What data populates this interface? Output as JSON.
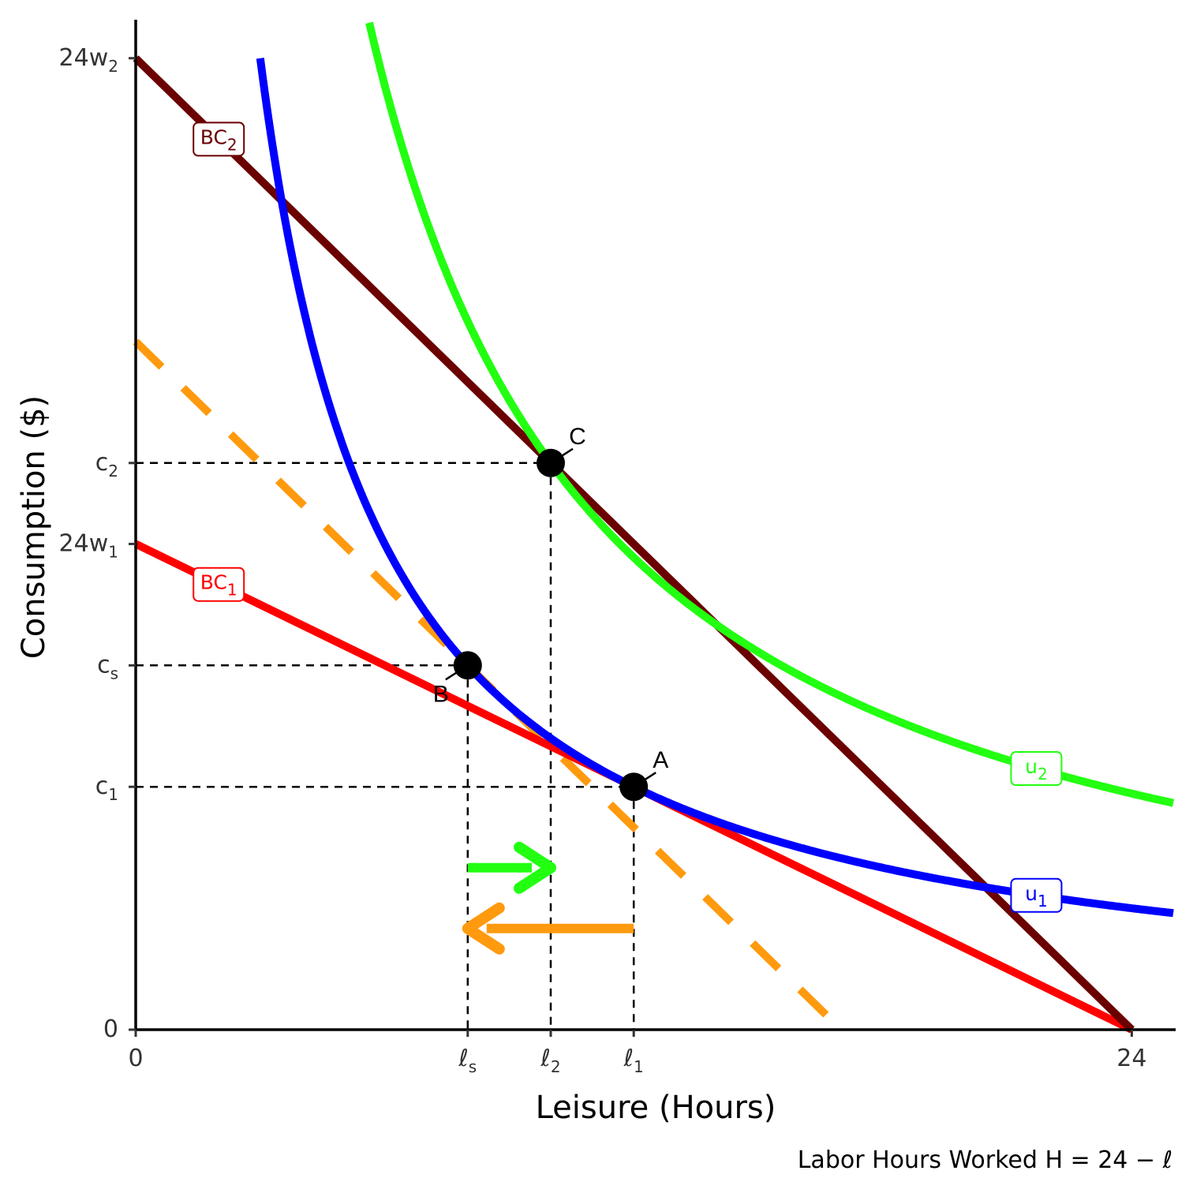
{
  "chart_data": {
    "type": "line",
    "xlabel": "Leisure (Hours)",
    "ylabel": "Consumption ($)",
    "caption": "Labor Hours Worked H = 24 − ℓ",
    "xlim": [
      0,
      25
    ],
    "ylim": [
      0,
      25
    ],
    "x_ticks": [
      {
        "value": 0,
        "label": "0",
        "sub": ""
      },
      {
        "value": 8,
        "label": "ℓ",
        "sub": "s"
      },
      {
        "value": 10,
        "label": "ℓ",
        "sub": "2"
      },
      {
        "value": 12,
        "label": "ℓ",
        "sub": "1"
      },
      {
        "value": 24,
        "label": "24",
        "sub": ""
      }
    ],
    "y_ticks": [
      {
        "value": 0,
        "label": "0",
        "sub": ""
      },
      {
        "value": 6,
        "label": "c",
        "sub": "1"
      },
      {
        "value": 9,
        "label": "c",
        "sub": "s"
      },
      {
        "value": 12,
        "label": "24w",
        "sub": "1"
      },
      {
        "value": 14,
        "label": "c",
        "sub": "2"
      },
      {
        "value": 24,
        "label": "24w",
        "sub": "2"
      }
    ],
    "lines": [
      {
        "name": "BC",
        "sub": "1",
        "color": "#ff0000",
        "x": [
          0,
          24
        ],
        "y": [
          12,
          0
        ]
      },
      {
        "name": "BC",
        "sub": "2",
        "color": "#6b0000",
        "x": [
          0,
          24
        ],
        "y": [
          24,
          0
        ]
      },
      {
        "name": "",
        "color": "#ff9a0e",
        "dashed": true,
        "x": [
          0,
          17
        ],
        "y": [
          17,
          0
        ]
      }
    ],
    "curves": [
      {
        "name": "u",
        "sub": "1",
        "color": "#0000ff",
        "k": 72,
        "x_range": [
          3,
          25
        ]
      },
      {
        "name": "u",
        "sub": "2",
        "color": "#22ff11",
        "k": 140,
        "x_range": [
          4,
          25
        ]
      }
    ],
    "points": [
      {
        "label": "A",
        "x": 12,
        "y": 6
      },
      {
        "label": "B",
        "x": 8,
        "y": 9
      },
      {
        "label": "C",
        "x": 10,
        "y": 14
      }
    ],
    "arrows": [
      {
        "color": "#22ff11",
        "from": 8,
        "to": 10,
        "y": 4
      },
      {
        "color": "#ff9a0e",
        "from": 12,
        "to": 8,
        "y": 2.5
      }
    ]
  }
}
